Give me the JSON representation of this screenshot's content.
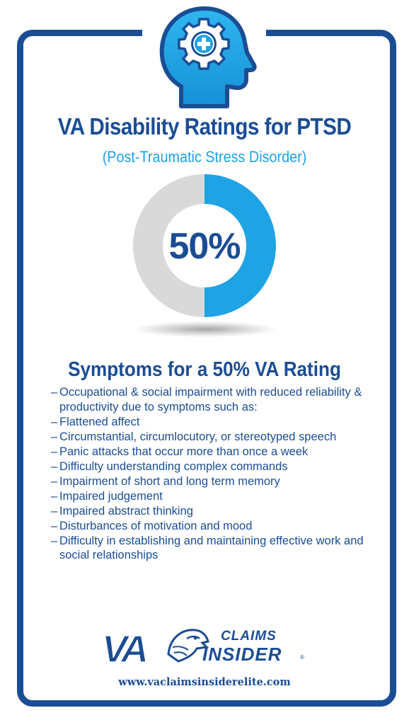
{
  "header": {
    "title": "VA Disability Ratings for PTSD",
    "subtitle": "(Post-Traumatic Stress Disorder)",
    "icon": "head-gear-medical-cross-icon"
  },
  "rating": {
    "percent_label": "50%",
    "fraction": 0.5,
    "fill_color": "#1ea3e4",
    "track_color": "#d9d9d9"
  },
  "symptoms": {
    "heading": "Symptoms for a 50% VA Rating",
    "items": [
      "Occupational & social impairment with reduced reliability & productivity due to symptoms such as:",
      "Flattened affect",
      "Circumstantial, circumlocutory, or stereotyped speech",
      "Panic attacks that occur more than once a week",
      "Difficulty understanding complex commands",
      "Impairment of short and long term memory",
      "Impaired judgement",
      "Impaired abstract thinking",
      "Disturbances of motivation and mood",
      "Difficulty in establishing and maintaining effective work and social relationships"
    ]
  },
  "footer": {
    "logo_va": "VA",
    "logo_claims": "CLAIMS",
    "logo_insider": "INSIDER",
    "logo_reg": "®",
    "website": "www.vaclaimsinsiderelite.com",
    "logo_icon": "eagle-head-icon"
  },
  "colors": {
    "navy": "#1a4d94",
    "sky": "#1ea3e4",
    "gray": "#d9d9d9"
  }
}
